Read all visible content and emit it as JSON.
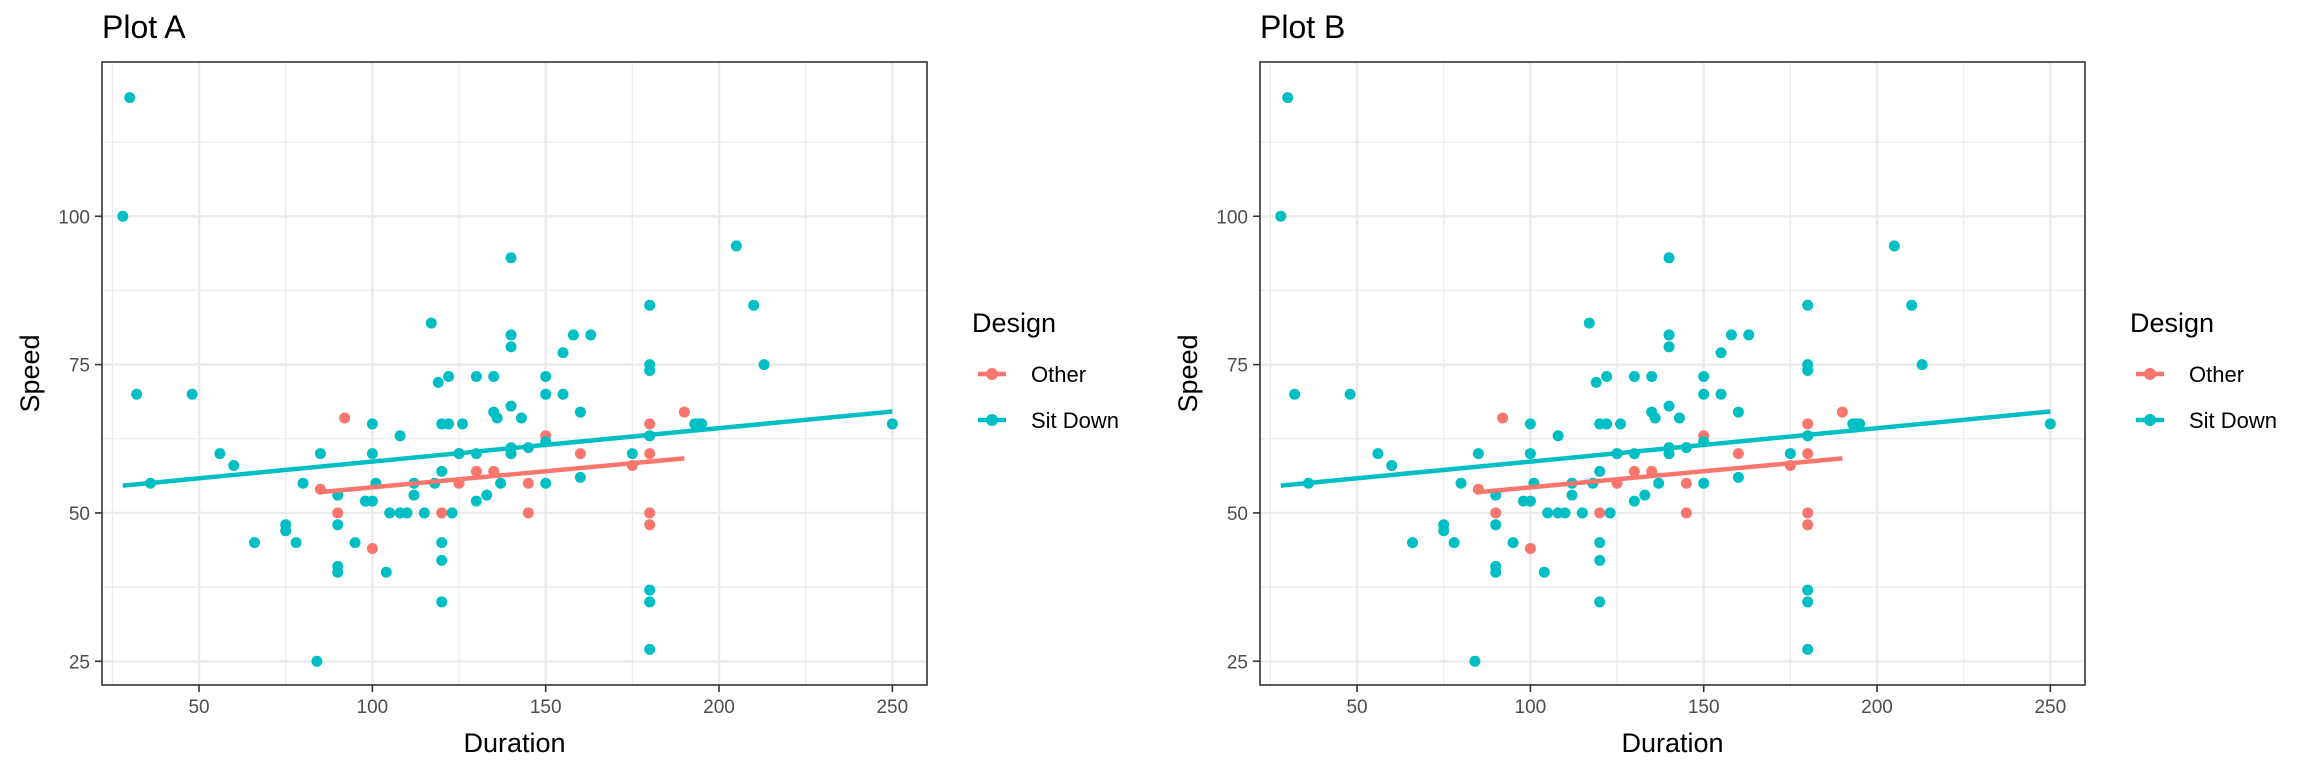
{
  "colors": {
    "other": "#F8766D",
    "sit_down": "#00BFC4",
    "grid": "#EBEBEB",
    "panel_border": "#333333"
  },
  "chart_data": [
    {
      "type": "scatter",
      "title": "Plot A",
      "xlabel": "Duration",
      "ylabel": "Speed",
      "xlim": [
        22,
        260
      ],
      "ylim": [
        21,
        126
      ],
      "x_ticks": [
        50,
        100,
        150,
        200,
        250
      ],
      "y_ticks": [
        25,
        50,
        75,
        100
      ],
      "grid": true,
      "legend": {
        "title": "Design",
        "placement": "right",
        "entries": [
          "Other",
          "Sit Down"
        ]
      },
      "series": [
        {
          "name": "Other",
          "color": "#F8766D",
          "points": [
            [
              85,
              54
            ],
            [
              90,
              50
            ],
            [
              92,
              66
            ],
            [
              100,
              44
            ],
            [
              120,
              50
            ],
            [
              125,
              55
            ],
            [
              125,
              60
            ],
            [
              130,
              57
            ],
            [
              135,
              57
            ],
            [
              140,
              60
            ],
            [
              145,
              55
            ],
            [
              145,
              50
            ],
            [
              150,
              63
            ],
            [
              160,
              60
            ],
            [
              175,
              58
            ],
            [
              180,
              65
            ],
            [
              180,
              60
            ],
            [
              180,
              50
            ],
            [
              180,
              48
            ],
            [
              190,
              67
            ]
          ],
          "trend": [
            [
              85,
              53.5
            ],
            [
              190,
              59.2
            ]
          ]
        },
        {
          "name": "Sit Down",
          "color": "#00BFC4",
          "points": [
            [
              28,
              100
            ],
            [
              30,
              120
            ],
            [
              32,
              70
            ],
            [
              36,
              55
            ],
            [
              48,
              70
            ],
            [
              56,
              60
            ],
            [
              60,
              58
            ],
            [
              66,
              45
            ],
            [
              75,
              47
            ],
            [
              75,
              48
            ],
            [
              78,
              45
            ],
            [
              80,
              55
            ],
            [
              84,
              25
            ],
            [
              85,
              60
            ],
            [
              90,
              40
            ],
            [
              90,
              41
            ],
            [
              90,
              48
            ],
            [
              90,
              53
            ],
            [
              95,
              45
            ],
            [
              98,
              52
            ],
            [
              100,
              52
            ],
            [
              100,
              60
            ],
            [
              100,
              65
            ],
            [
              101,
              55
            ],
            [
              104,
              40
            ],
            [
              105,
              50
            ],
            [
              108,
              50
            ],
            [
              108,
              63
            ],
            [
              110,
              50
            ],
            [
              112,
              55
            ],
            [
              112,
              53
            ],
            [
              115,
              50
            ],
            [
              117,
              82
            ],
            [
              118,
              55
            ],
            [
              119,
              72
            ],
            [
              120,
              42
            ],
            [
              120,
              45
            ],
            [
              120,
              35
            ],
            [
              120,
              57
            ],
            [
              120,
              65
            ],
            [
              122,
              73
            ],
            [
              122,
              65
            ],
            [
              123,
              50
            ],
            [
              125,
              60
            ],
            [
              126,
              65
            ],
            [
              130,
              73
            ],
            [
              130,
              52
            ],
            [
              130,
              60
            ],
            [
              133,
              53
            ],
            [
              135,
              67
            ],
            [
              135,
              73
            ],
            [
              136,
              66
            ],
            [
              137,
              55
            ],
            [
              140,
              93
            ],
            [
              140,
              80
            ],
            [
              140,
              78
            ],
            [
              140,
              68
            ],
            [
              140,
              61
            ],
            [
              140,
              60
            ],
            [
              143,
              66
            ],
            [
              145,
              61
            ],
            [
              150,
              73
            ],
            [
              150,
              70
            ],
            [
              150,
              55
            ],
            [
              150,
              62
            ],
            [
              155,
              77
            ],
            [
              155,
              70
            ],
            [
              158,
              80
            ],
            [
              160,
              67
            ],
            [
              160,
              56
            ],
            [
              163,
              80
            ],
            [
              175,
              60
            ],
            [
              180,
              85
            ],
            [
              180,
              75
            ],
            [
              180,
              74
            ],
            [
              180,
              63
            ],
            [
              180,
              37
            ],
            [
              180,
              35
            ],
            [
              180,
              27
            ],
            [
              193,
              65
            ],
            [
              194,
              65
            ],
            [
              195,
              65
            ],
            [
              205,
              95
            ],
            [
              210,
              85
            ],
            [
              213,
              75
            ],
            [
              250,
              65
            ]
          ],
          "trend": [
            [
              28,
              54.6
            ],
            [
              250,
              67.1
            ]
          ]
        }
      ]
    },
    {
      "type": "scatter",
      "title": "Plot B",
      "xlabel": "Duration",
      "ylabel": "Speed",
      "xlim": [
        22,
        260
      ],
      "ylim": [
        21,
        126
      ],
      "x_ticks": [
        50,
        100,
        150,
        200,
        250
      ],
      "y_ticks": [
        25,
        50,
        75,
        100
      ],
      "grid": true,
      "legend": {
        "title": "Design",
        "placement": "right",
        "entries": [
          "Other",
          "Sit Down"
        ]
      },
      "series": [
        {
          "name": "Other",
          "color": "#F8766D",
          "points": [
            [
              85,
              54
            ],
            [
              90,
              50
            ],
            [
              92,
              66
            ],
            [
              100,
              44
            ],
            [
              120,
              50
            ],
            [
              125,
              55
            ],
            [
              125,
              60
            ],
            [
              130,
              57
            ],
            [
              135,
              57
            ],
            [
              140,
              60
            ],
            [
              145,
              55
            ],
            [
              145,
              50
            ],
            [
              150,
              63
            ],
            [
              160,
              60
            ],
            [
              175,
              58
            ],
            [
              180,
              65
            ],
            [
              180,
              60
            ],
            [
              180,
              50
            ],
            [
              180,
              48
            ],
            [
              190,
              67
            ]
          ],
          "trend": [
            [
              85,
              53.5
            ],
            [
              190,
              59.2
            ]
          ]
        },
        {
          "name": "Sit Down",
          "color": "#00BFC4",
          "points": [
            [
              28,
              100
            ],
            [
              30,
              120
            ],
            [
              32,
              70
            ],
            [
              36,
              55
            ],
            [
              48,
              70
            ],
            [
              56,
              60
            ],
            [
              60,
              58
            ],
            [
              66,
              45
            ],
            [
              75,
              47
            ],
            [
              75,
              48
            ],
            [
              78,
              45
            ],
            [
              80,
              55
            ],
            [
              84,
              25
            ],
            [
              85,
              60
            ],
            [
              90,
              40
            ],
            [
              90,
              41
            ],
            [
              90,
              48
            ],
            [
              90,
              53
            ],
            [
              95,
              45
            ],
            [
              98,
              52
            ],
            [
              100,
              52
            ],
            [
              100,
              60
            ],
            [
              100,
              65
            ],
            [
              101,
              55
            ],
            [
              104,
              40
            ],
            [
              105,
              50
            ],
            [
              108,
              50
            ],
            [
              108,
              63
            ],
            [
              110,
              50
            ],
            [
              112,
              55
            ],
            [
              112,
              53
            ],
            [
              115,
              50
            ],
            [
              117,
              82
            ],
            [
              118,
              55
            ],
            [
              119,
              72
            ],
            [
              120,
              42
            ],
            [
              120,
              45
            ],
            [
              120,
              35
            ],
            [
              120,
              57
            ],
            [
              120,
              65
            ],
            [
              122,
              73
            ],
            [
              122,
              65
            ],
            [
              123,
              50
            ],
            [
              125,
              60
            ],
            [
              126,
              65
            ],
            [
              130,
              73
            ],
            [
              130,
              52
            ],
            [
              130,
              60
            ],
            [
              133,
              53
            ],
            [
              135,
              67
            ],
            [
              135,
              73
            ],
            [
              136,
              66
            ],
            [
              137,
              55
            ],
            [
              140,
              93
            ],
            [
              140,
              80
            ],
            [
              140,
              78
            ],
            [
              140,
              68
            ],
            [
              140,
              61
            ],
            [
              140,
              60
            ],
            [
              143,
              66
            ],
            [
              145,
              61
            ],
            [
              150,
              73
            ],
            [
              150,
              70
            ],
            [
              150,
              55
            ],
            [
              150,
              62
            ],
            [
              155,
              77
            ],
            [
              155,
              70
            ],
            [
              158,
              80
            ],
            [
              160,
              67
            ],
            [
              160,
              56
            ],
            [
              163,
              80
            ],
            [
              175,
              60
            ],
            [
              180,
              85
            ],
            [
              180,
              75
            ],
            [
              180,
              74
            ],
            [
              180,
              63
            ],
            [
              180,
              37
            ],
            [
              180,
              35
            ],
            [
              180,
              27
            ],
            [
              193,
              65
            ],
            [
              194,
              65
            ],
            [
              195,
              65
            ],
            [
              205,
              95
            ],
            [
              210,
              85
            ],
            [
              213,
              75
            ],
            [
              250,
              65
            ]
          ],
          "trend": [
            [
              28,
              54.6
            ],
            [
              250,
              67.1
            ]
          ]
        }
      ]
    }
  ]
}
